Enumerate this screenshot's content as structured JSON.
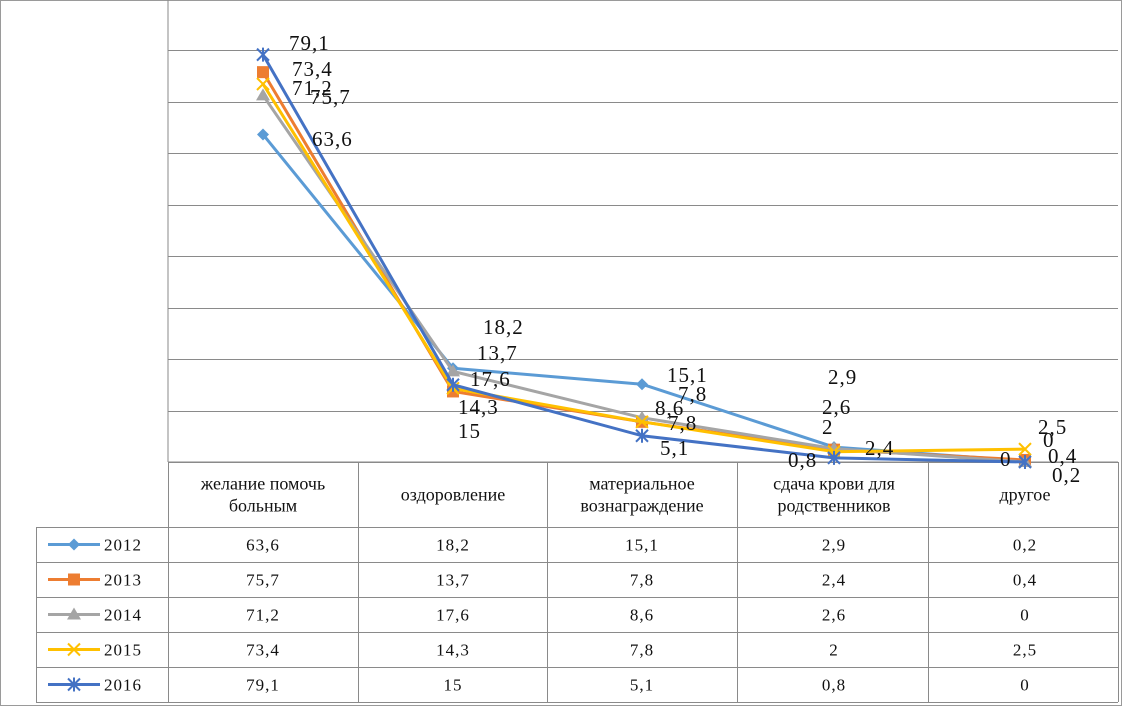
{
  "chart_data": {
    "type": "line",
    "categories": [
      [
        "желание помочь",
        "больным"
      ],
      [
        "оздоровление"
      ],
      [
        "материальное",
        "вознаграждение"
      ],
      [
        "сдача крови для",
        "родственников"
      ],
      [
        "другое"
      ]
    ],
    "ylim": [
      0,
      80
    ],
    "grid": true,
    "legend": "data-table",
    "series": [
      {
        "name": "2012",
        "values": [
          63.6,
          18.2,
          15.1,
          2.9,
          0.2
        ],
        "labels": [
          "63,6",
          "18,2",
          "15,1",
          "2,9",
          "0,2"
        ],
        "color": "#5b9bd5",
        "marker": "diamond"
      },
      {
        "name": "2013",
        "values": [
          75.7,
          13.7,
          7.8,
          2.4,
          0.4
        ],
        "labels": [
          "75,7",
          "13,7",
          "7,8",
          "2,4",
          "0,4"
        ],
        "color": "#ed7d31",
        "marker": "square"
      },
      {
        "name": "2014",
        "values": [
          71.2,
          17.6,
          8.6,
          2.6,
          0
        ],
        "labels": [
          "71,2",
          "17,6",
          "8,6",
          "2,6",
          "0"
        ],
        "color": "#a5a5a5",
        "marker": "triangle"
      },
      {
        "name": "2015",
        "values": [
          73.4,
          14.3,
          7.8,
          2,
          2.5
        ],
        "labels": [
          "73,4",
          "14,3",
          "7,8",
          "2",
          "2,5"
        ],
        "color": "#ffc000",
        "marker": "x"
      },
      {
        "name": "2016",
        "values": [
          79.1,
          15,
          5.1,
          0.8,
          0
        ],
        "labels": [
          "79,1",
          "15",
          "5,1",
          "0,8",
          "0"
        ],
        "color": "#4472c4",
        "marker": "star"
      }
    ]
  }
}
